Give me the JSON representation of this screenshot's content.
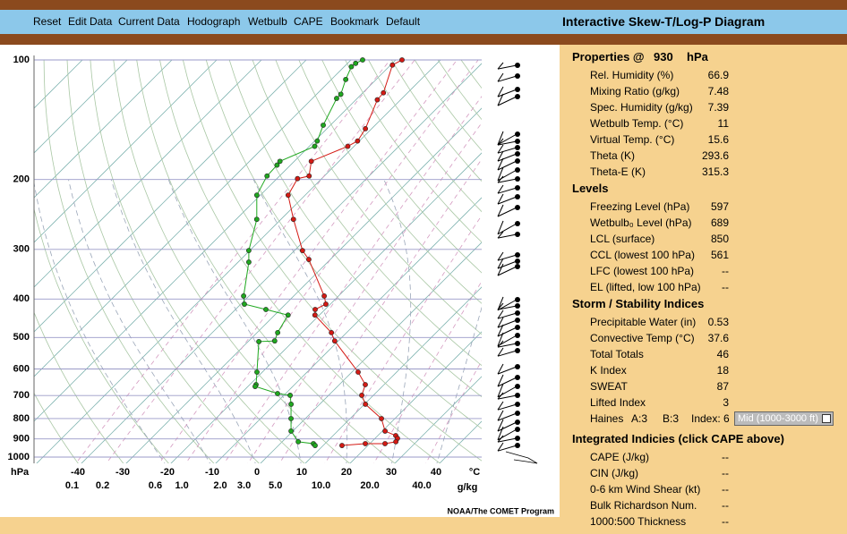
{
  "menu": [
    "Reset",
    "Edit Data",
    "Current Data",
    "Hodograph",
    "Wetbulb",
    "CAPE",
    "Bookmark",
    "Default"
  ],
  "title": "Interactive Skew-T/Log-P Diagram",
  "credit": "NOAA/The COMET Program",
  "skewt": {
    "pressure_unit": "hPa",
    "temperature_unit": "°C",
    "mixing_unit": "g/kg",
    "pticks": [
      100,
      200,
      300,
      400,
      500,
      600,
      700,
      800,
      900,
      1000
    ],
    "tticks": [
      -40,
      -30,
      -20,
      -10,
      0,
      10,
      20,
      30,
      40
    ],
    "mticks": [
      0.1,
      0.2,
      0.6,
      {
        "value": 1,
        "label": "1.0"
      },
      {
        "value": 2,
        "label": "2.0"
      },
      {
        "value": 3,
        "label": "3.0"
      },
      {
        "value": 5,
        "label": "5.0"
      },
      {
        "value": 10,
        "label": "10.0"
      },
      {
        "value": 20,
        "label": "20.0"
      },
      {
        "value": 40,
        "label": "40.0"
      }
    ],
    "temperature": {
      "color": "#d41a14",
      "pressure": [
        100,
        103,
        121,
        126,
        149,
        160,
        165,
        180,
        196,
        199,
        219,
        252,
        302,
        318,
        393,
        412,
        425,
        439,
        486,
        510,
        611,
        657,
        699,
        736,
        800,
        860,
        883,
        897,
        915,
        925,
        925,
        935
      ],
      "values": [
        -58.6,
        -59.6,
        -55.4,
        -55.2,
        -51.4,
        -50.4,
        -51.4,
        -56.2,
        -53.4,
        -55.4,
        -53.8,
        -47.2,
        -38.2,
        -34.8,
        -23.2,
        -21,
        -22.2,
        -21,
        -13.4,
        -10.8,
        1.4,
        5.8,
        7.4,
        10.2,
        17,
        20.6,
        24,
        25,
        25.4,
        23.4,
        19,
        14.2
      ]
    },
    "dewpoint": {
      "color": "#1fa81f",
      "pressure": [
        100,
        102,
        104,
        112,
        122,
        125,
        146,
        160,
        165,
        180,
        184,
        196,
        219,
        252,
        302,
        323,
        393,
        412,
        425,
        439,
        486,
        510,
        512,
        611,
        657,
        664,
        692,
        699,
        736,
        800,
        860,
        915,
        925,
        935
      ],
      "values": [
        -67.4,
        -68.2,
        -68.4,
        -66.8,
        -64.6,
        -64.6,
        -61.6,
        -59.4,
        -58.8,
        -63.2,
        -63,
        -62.8,
        -60.8,
        -55.4,
        -50.2,
        -47.6,
        -41.2,
        -39.2,
        -33.2,
        -27,
        -25.4,
        -24.2,
        -27.6,
        -21.2,
        -18.6,
        -18.4,
        -11.8,
        -8.6,
        -6.4,
        -3.2,
        -0.4,
        3.6,
        7.4,
        8.2
      ]
    }
  },
  "panel": {
    "properties": {
      "heading": "Properties @",
      "pressure": 930,
      "unit": "hPa"
    },
    "sections": [
      {
        "rows": [
          {
            "label": "Rel. Humidity (%)",
            "value": 66.9
          },
          {
            "label": "Mixing Ratio (g/kg)",
            "value": 7.48
          },
          {
            "label": "Spec. Humidity (g/kg)",
            "value": 7.39
          },
          {
            "label": "Wetbulb Temp. (°C)",
            "value": 11
          },
          {
            "label": "Virtual Temp. (°C)",
            "value": 15.6
          },
          {
            "label": "Theta (K)",
            "value": 293.6
          },
          {
            "label": "Theta-E (K)",
            "value": 315.3
          }
        ]
      },
      {
        "heading": "Levels",
        "rows": [
          {
            "label": "Freezing Level (hPa)",
            "value": 597
          },
          {
            "label": "Wetbulb₀ Level (hPa)",
            "value": 689
          },
          {
            "label": "LCL (surface)",
            "value": 850
          },
          {
            "label": "CCL (lowest 100 hPa)",
            "value": 561
          },
          {
            "label": "LFC (lowest 100 hPa)",
            "value": "--"
          },
          {
            "label": "EL (lifted, low 100 hPa)",
            "value": "--"
          }
        ]
      },
      {
        "heading": "Storm / Stability Indices",
        "rows": [
          {
            "label": "Precipitable Water (in)",
            "value": 0.53
          },
          {
            "label": "Convective Temp (°C)",
            "value": 37.6
          },
          {
            "label": "Total Totals",
            "value": 46
          },
          {
            "label": "K Index",
            "value": 18
          },
          {
            "label": "SWEAT",
            "value": 87
          },
          {
            "label": "Lifted Index",
            "value": 3
          }
        ]
      },
      {
        "heading": "Integrated Indicies (click CAPE above)",
        "rows": [
          {
            "label": "CAPE (J/kg)",
            "value": "--"
          },
          {
            "label": "CIN (J/kg)",
            "value": "--"
          },
          {
            "label": "0-6 km Wind Shear (kt)",
            "value": "--"
          },
          {
            "label": "Bulk Richardson Num.",
            "value": "--"
          },
          {
            "label": "1000:500 Thickness",
            "value": "--"
          }
        ]
      }
    ],
    "haines": {
      "label": "Haines",
      "a": "A:3",
      "b": "B:3",
      "index": "Index: 6",
      "option": "Mid (1000-3000 ft)"
    }
  }
}
